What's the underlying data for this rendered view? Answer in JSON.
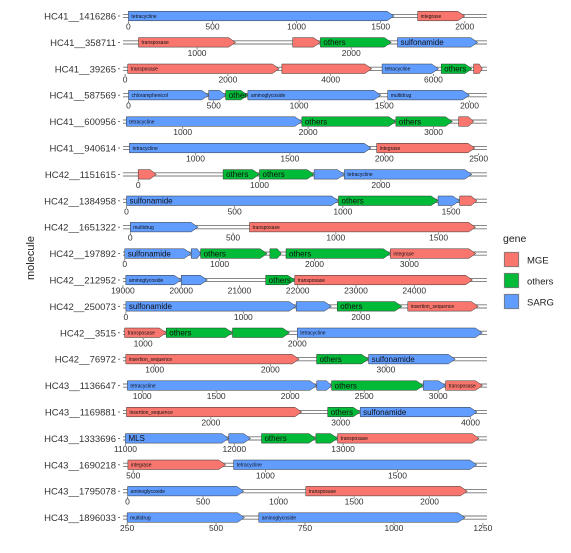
{
  "chart_data": {
    "type": "gene_arrow_map",
    "ylabel": "molecule",
    "legend": {
      "title": "gene",
      "placement": "right",
      "items": [
        {
          "name": "MGE",
          "color": "#F8766D"
        },
        {
          "name": "others",
          "color": "#00BA38"
        },
        {
          "name": "SARG",
          "color": "#619CFF"
        }
      ]
    },
    "colors": {
      "MGE": "#F8766D",
      "others": "#00BA38",
      "SARG": "#619CFF"
    },
    "molecules": [
      {
        "name": "HC41__1416286",
        "xlim": [
          -50,
          2150
        ],
        "ticks": [
          0,
          500,
          1000,
          1500,
          2000
        ],
        "genes": [
          {
            "start": 0,
            "end": 1580,
            "type": "SARG",
            "label": "tetracycline"
          },
          {
            "start": 1720,
            "end": 2000,
            "type": "MGE",
            "label": "integrase"
          }
        ]
      },
      {
        "name": "HC41__358711",
        "xlim": [
          500,
          2900
        ],
        "ticks": [
          1000,
          2000
        ],
        "genes": [
          {
            "start": 620,
            "end": 1250,
            "type": "MGE",
            "label": "transposase"
          },
          {
            "start": 1620,
            "end": 1800,
            "type": "MGE",
            "label": ""
          },
          {
            "start": 1800,
            "end": 2260,
            "type": "others",
            "label": "others"
          },
          {
            "start": 2300,
            "end": 2820,
            "type": "SARG",
            "label": "sulfonamide"
          }
        ]
      },
      {
        "name": "HC41__39265",
        "xlim": [
          -100,
          7100
        ],
        "ticks": [
          0,
          2000,
          4000,
          6000
        ],
        "genes": [
          {
            "start": 50,
            "end": 3000,
            "type": "MGE",
            "label": "transposase"
          },
          {
            "start": 3050,
            "end": 4800,
            "type": "MGE",
            "label": ""
          },
          {
            "start": 5000,
            "end": 6100,
            "type": "SARG",
            "label": "tetracycline"
          },
          {
            "start": 6150,
            "end": 6750,
            "type": "others",
            "label": "others"
          },
          {
            "start": 6780,
            "end": 6950,
            "type": "MGE",
            "label": ""
          }
        ]
      },
      {
        "name": "HC41__587569",
        "xlim": [
          -50,
          2120
        ],
        "ticks": [
          0,
          500,
          1000,
          1500,
          2000
        ],
        "genes": [
          {
            "start": 0,
            "end": 470,
            "type": "SARG",
            "label": "chloramphenicol"
          },
          {
            "start": 470,
            "end": 570,
            "type": "SARG",
            "label": ""
          },
          {
            "start": 570,
            "end": 700,
            "type": "others",
            "label": "others"
          },
          {
            "start": 700,
            "end": 1480,
            "type": "SARG",
            "label": "aminoglycoside"
          },
          {
            "start": 1520,
            "end": 2000,
            "type": "SARG",
            "label": "multidrug"
          }
        ]
      },
      {
        "name": "HC41__600956",
        "xlim": [
          500,
          3450
        ],
        "ticks": [
          1000,
          2000,
          3000
        ],
        "genes": [
          {
            "start": 550,
            "end": 1950,
            "type": "SARG",
            "label": "tetracycline"
          },
          {
            "start": 1950,
            "end": 2700,
            "type": "others",
            "label": "others"
          },
          {
            "start": 2700,
            "end": 3150,
            "type": "others",
            "label": "others"
          },
          {
            "start": 3200,
            "end": 3320,
            "type": "MGE",
            "label": ""
          }
        ]
      },
      {
        "name": "HC41__940614",
        "xlim": [
          600,
          2560
        ],
        "ticks": [
          1000,
          1500,
          2000,
          2500
        ],
        "genes": [
          {
            "start": 650,
            "end": 1930,
            "type": "SARG",
            "label": "tetracycline"
          },
          {
            "start": 1960,
            "end": 2480,
            "type": "MGE",
            "label": "integrase"
          }
        ]
      },
      {
        "name": "HC42__1151615",
        "xlim": [
          -150,
          2900
        ],
        "ticks": [
          0,
          1000,
          2000
        ],
        "genes": [
          {
            "start": 0,
            "end": 150,
            "type": "MGE",
            "label": ""
          },
          {
            "start": 700,
            "end": 1000,
            "type": "others",
            "label": "others"
          },
          {
            "start": 1000,
            "end": 1450,
            "type": "others",
            "label": "others"
          },
          {
            "start": 1450,
            "end": 1700,
            "type": "SARG",
            "label": ""
          },
          {
            "start": 1700,
            "end": 2750,
            "type": "SARG",
            "label": "tetracycline"
          }
        ]
      },
      {
        "name": "HC42__1384958",
        "xlim": [
          -30,
          1680
        ],
        "ticks": [
          0,
          500,
          1000,
          1500
        ],
        "genes": [
          {
            "start": 0,
            "end": 980,
            "type": "SARG",
            "label": "sulfonamide"
          },
          {
            "start": 980,
            "end": 1440,
            "type": "others",
            "label": "others"
          },
          {
            "start": 1440,
            "end": 1540,
            "type": "SARG",
            "label": ""
          },
          {
            "start": 1540,
            "end": 1620,
            "type": "MGE",
            "label": ""
          }
        ]
      },
      {
        "name": "HC42__1651322",
        "xlim": [
          -50,
          1750
        ],
        "ticks": [
          0,
          500,
          1000,
          1500
        ],
        "genes": [
          {
            "start": 0,
            "end": 330,
            "type": "SARG",
            "label": "multidrug"
          },
          {
            "start": 580,
            "end": 1680,
            "type": "MGE",
            "label": "transposase"
          }
        ]
      },
      {
        "name": "HC42__197892",
        "xlim": [
          -50,
          3850
        ],
        "ticks": [
          0,
          1000,
          2000,
          3000
        ],
        "genes": [
          {
            "start": 0,
            "end": 700,
            "type": "SARG",
            "label": "sulfonamide"
          },
          {
            "start": 700,
            "end": 800,
            "type": "SARG",
            "label": ""
          },
          {
            "start": 800,
            "end": 1500,
            "type": "others",
            "label": "others"
          },
          {
            "start": 1530,
            "end": 1650,
            "type": "others",
            "label": ""
          },
          {
            "start": 1700,
            "end": 2800,
            "type": "others",
            "label": "others"
          },
          {
            "start": 2800,
            "end": 3700,
            "type": "MGE",
            "label": "integrase"
          }
        ]
      },
      {
        "name": "HC42__212952",
        "xlim": [
          18950,
          25300
        ],
        "ticks": [
          19000,
          20000,
          21000,
          22000,
          23000,
          24000
        ],
        "genes": [
          {
            "start": 19050,
            "end": 20000,
            "type": "SARG",
            "label": "aminoglycoside"
          },
          {
            "start": 20000,
            "end": 20450,
            "type": "SARG",
            "label": ""
          },
          {
            "start": 21450,
            "end": 21950,
            "type": "others",
            "label": "others"
          },
          {
            "start": 21950,
            "end": 25000,
            "type": "MGE",
            "label": "transposase"
          }
        ]
      },
      {
        "name": "HC42__250073",
        "xlim": [
          -50,
          3100
        ],
        "ticks": [
          0,
          1000,
          2000
        ],
        "genes": [
          {
            "start": 0,
            "end": 1450,
            "type": "SARG",
            "label": "sulfonamide"
          },
          {
            "start": 1450,
            "end": 1750,
            "type": "SARG",
            "label": ""
          },
          {
            "start": 1800,
            "end": 2350,
            "type": "others",
            "label": "others"
          },
          {
            "start": 2400,
            "end": 3000,
            "type": "MGE",
            "label": "insertion_sequence"
          }
        ]
      },
      {
        "name": "HC42__3515",
        "xlim": [
          850,
          3250
        ],
        "ticks": [
          1000,
          2000
        ],
        "genes": [
          {
            "start": 880,
            "end": 1150,
            "type": "MGE",
            "label": "transposase"
          },
          {
            "start": 1150,
            "end": 1580,
            "type": "others",
            "label": "others"
          },
          {
            "start": 1580,
            "end": 1950,
            "type": "others",
            "label": ""
          },
          {
            "start": 2000,
            "end": 3200,
            "type": "SARG",
            "label": "tetracycline"
          }
        ]
      },
      {
        "name": "HC42__76972",
        "xlim": [
          700,
          3900
        ],
        "ticks": [
          1000,
          2000,
          3000
        ],
        "genes": [
          {
            "start": 750,
            "end": 2250,
            "type": "MGE",
            "label": "insertion_sequence"
          },
          {
            "start": 2400,
            "end": 2850,
            "type": "others",
            "label": "others"
          },
          {
            "start": 2850,
            "end": 3600,
            "type": "SARG",
            "label": "sulfonamide"
          }
        ]
      },
      {
        "name": "HC43__1136647",
        "xlim": [
          850,
          3350
        ],
        "ticks": [
          1000,
          1500,
          2000,
          2500,
          3000
        ],
        "genes": [
          {
            "start": 900,
            "end": 2180,
            "type": "SARG",
            "label": "tetracycline"
          },
          {
            "start": 2180,
            "end": 2280,
            "type": "SARG",
            "label": ""
          },
          {
            "start": 2280,
            "end": 2900,
            "type": "others",
            "label": "others"
          },
          {
            "start": 2900,
            "end": 3050,
            "type": "SARG",
            "label": ""
          },
          {
            "start": 3050,
            "end": 3300,
            "type": "MGE",
            "label": "transposase"
          }
        ]
      },
      {
        "name": "HC43__1169881",
        "xlim": [
          1300,
          4150
        ],
        "ticks": [
          2000,
          3000,
          4000
        ],
        "genes": [
          {
            "start": 1350,
            "end": 2700,
            "type": "MGE",
            "label": "insertion_sequence"
          },
          {
            "start": 2900,
            "end": 3150,
            "type": "others",
            "label": "others"
          },
          {
            "start": 3150,
            "end": 4050,
            "type": "SARG",
            "label": "sulfonamide"
          }
        ]
      },
      {
        "name": "HC43__1333696",
        "xlim": [
          10950,
          14350
        ],
        "ticks": [
          11000,
          12000,
          13000
        ],
        "genes": [
          {
            "start": 11000,
            "end": 11950,
            "type": "SARG",
            "label": "MLS"
          },
          {
            "start": 11950,
            "end": 12150,
            "type": "SARG",
            "label": ""
          },
          {
            "start": 12250,
            "end": 12750,
            "type": "others",
            "label": "others"
          },
          {
            "start": 12750,
            "end": 12950,
            "type": "others",
            "label": ""
          },
          {
            "start": 12950,
            "end": 14250,
            "type": "MGE",
            "label": "transposase"
          }
        ]
      },
      {
        "name": "HC43__1690218",
        "xlim": [
          450,
          1850
        ],
        "ticks": [
          500,
          1000,
          1500
        ],
        "genes": [
          {
            "start": 480,
            "end": 850,
            "type": "MGE",
            "label": "integrase"
          },
          {
            "start": 880,
            "end": 1800,
            "type": "SARG",
            "label": "tetracycline"
          }
        ]
      },
      {
        "name": "HC43__1795078",
        "xlim": [
          -50,
          2400
        ],
        "ticks": [
          0,
          500,
          1000,
          1500,
          2000
        ],
        "genes": [
          {
            "start": 0,
            "end": 770,
            "type": "SARG",
            "label": "aminoglycoside"
          },
          {
            "start": 1180,
            "end": 2250,
            "type": "MGE",
            "label": "transposase"
          }
        ]
      },
      {
        "name": "HC43__1896033",
        "xlim": [
          230,
          1270
        ],
        "ticks": [
          250,
          500,
          750,
          1000,
          1250
        ],
        "genes": [
          {
            "start": 250,
            "end": 580,
            "type": "SARG",
            "label": "multidrug"
          },
          {
            "start": 620,
            "end": 1200,
            "type": "SARG",
            "label": "aminoglycoside"
          }
        ]
      }
    ]
  }
}
